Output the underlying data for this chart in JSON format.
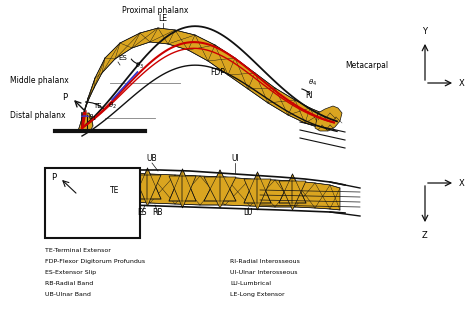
{
  "bg_color": "#ffffff",
  "mesh_fill": "#DAA520",
  "mesh_edge": "#111111",
  "tendon_red": "#CC0000",
  "tendon_blue": "#3333CC",
  "legend_left": [
    "TE-Terminal Extensor",
    "FDP-Flexor Digitorum Profundus",
    "ES-Extensor Slip",
    "RB-Radial Band",
    "UB-Ulnar Band"
  ],
  "legend_right": [
    "RI-Radial Interosseous",
    "UI-Ulnar Interosseous",
    "LU-Lumbrical",
    "LE-Long Extensor"
  ]
}
